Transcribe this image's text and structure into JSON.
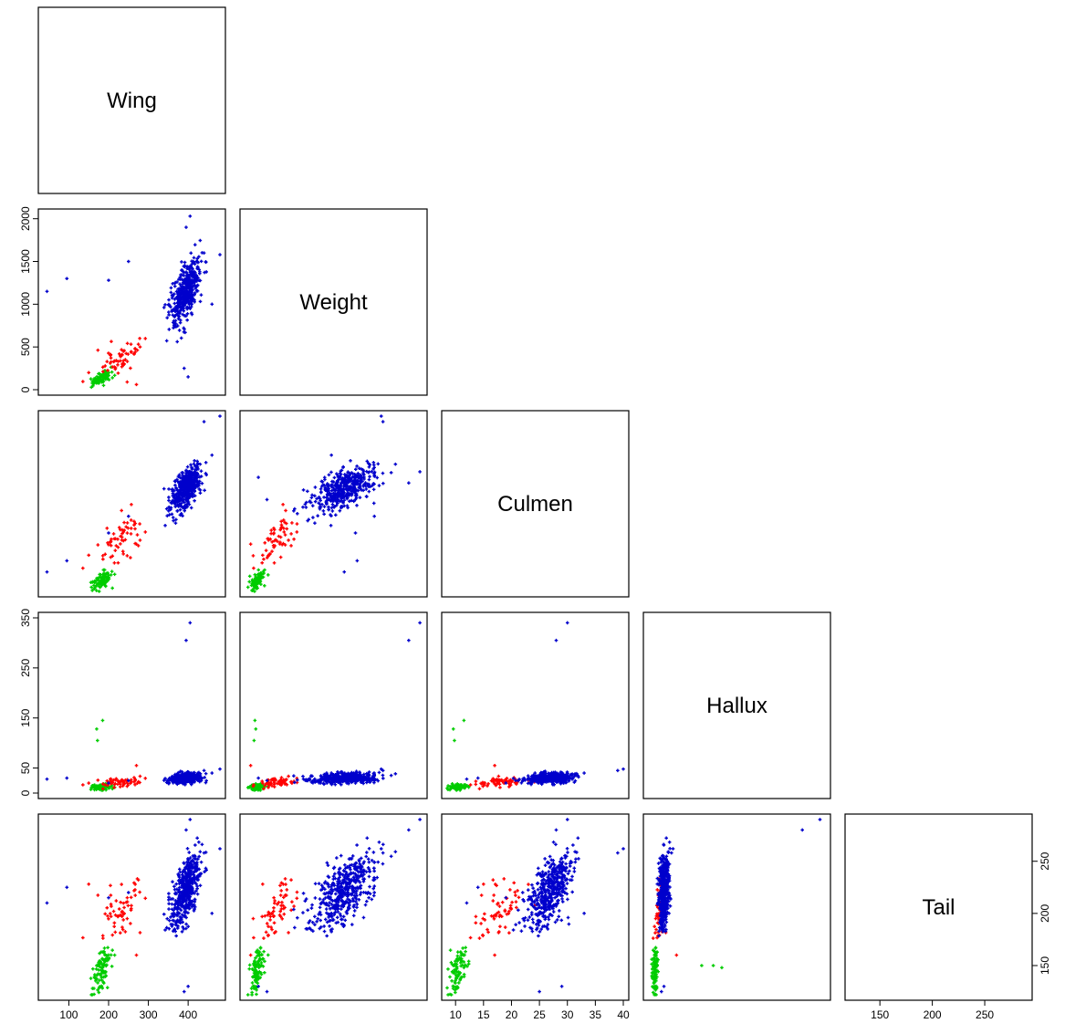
{
  "chart_data": {
    "type": "scatter",
    "layout": "lower-triangle scatterplot matrix",
    "variables": [
      "Wing",
      "Weight",
      "Culmen",
      "Hallux",
      "Tail"
    ],
    "ranges": {
      "Wing": [
        37,
        480
      ],
      "Weight": [
        0,
        2050
      ],
      "Culmen": [
        8.5,
        40
      ],
      "Hallux": [
        0,
        350
      ],
      "Tail": [
        122,
        290
      ]
    },
    "axes": {
      "bottom": {
        "Wing": [
          100,
          200,
          300,
          400
        ],
        "Culmen": [
          10,
          15,
          20,
          25,
          30,
          35,
          40
        ],
        "Tail": [
          150,
          200,
          250
        ]
      },
      "left": {
        "Weight": [
          0,
          500,
          1000,
          1500,
          2000
        ],
        "Hallux": [
          0,
          50,
          150,
          250,
          350
        ]
      },
      "right": {
        "Tail": [
          150,
          200,
          250
        ]
      }
    },
    "series": [
      {
        "color": "#00cc00",
        "center": {
          "Wing": 183,
          "Weight": 140,
          "Culmen": 10.5,
          "Hallux": 12,
          "Tail": 145
        },
        "sd": {
          "Wing": 12,
          "Weight": 40,
          "Culmen": 0.9,
          "Hallux": 3,
          "Tail": 12
        },
        "n": 90,
        "extra": [
          {
            "Wing": 170,
            "Weight": 120,
            "Culmen": 9.6,
            "Hallux": 128,
            "Tail": 150
          },
          {
            "Wing": 185,
            "Weight": 110,
            "Culmen": 11.5,
            "Hallux": 145,
            "Tail": 148
          },
          {
            "Wing": 172,
            "Weight": 100,
            "Culmen": 9.8,
            "Hallux": 105,
            "Tail": 150
          }
        ]
      },
      {
        "color": "#ff0000",
        "center": {
          "Wing": 230,
          "Weight": 370,
          "Culmen": 17.5,
          "Hallux": 22,
          "Tail": 200
        },
        "sd": {
          "Wing": 28,
          "Weight": 120,
          "Culmen": 2.2,
          "Hallux": 5,
          "Tail": 15
        },
        "n": 60,
        "extra": [
          {
            "Wing": 150,
            "Weight": 200,
            "Culmen": 15,
            "Hallux": 20,
            "Tail": 228
          },
          {
            "Wing": 270,
            "Weight": 60,
            "Culmen": 17,
            "Hallux": 55,
            "Tail": 160
          }
        ]
      },
      {
        "color": "#0000cc",
        "center": {
          "Wing": 395,
          "Weight": 1140,
          "Culmen": 27,
          "Hallux": 30,
          "Tail": 222
        },
        "sd": {
          "Wing": 18,
          "Weight": 180,
          "Culmen": 2,
          "Hallux": 5,
          "Tail": 17
        },
        "n": 450,
        "extra": [
          {
            "Wing": 405,
            "Weight": 2030,
            "Culmen": 30,
            "Hallux": 340,
            "Tail": 290
          },
          {
            "Wing": 395,
            "Weight": 1900,
            "Culmen": 28,
            "Hallux": 305,
            "Tail": 280
          },
          {
            "Wing": 440,
            "Weight": 1600,
            "Culmen": 39,
            "Hallux": 45,
            "Tail": 258
          },
          {
            "Wing": 45,
            "Weight": 1150,
            "Culmen": 12,
            "Hallux": 28,
            "Tail": 210
          },
          {
            "Wing": 95,
            "Weight": 1300,
            "Culmen": 14,
            "Hallux": 30,
            "Tail": 225
          },
          {
            "Wing": 460,
            "Weight": 1000,
            "Culmen": 33,
            "Hallux": 40,
            "Tail": 200
          },
          {
            "Wing": 400,
            "Weight": 150,
            "Culmen": 29,
            "Hallux": 30,
            "Tail": 130
          },
          {
            "Wing": 390,
            "Weight": 250,
            "Culmen": 25,
            "Hallux": 25,
            "Tail": 125
          },
          {
            "Wing": 200,
            "Weight": 1280,
            "Culmen": 19,
            "Hallux": 20,
            "Tail": 215
          },
          {
            "Wing": 250,
            "Weight": 1500,
            "Culmen": 22,
            "Hallux": 25,
            "Tail": 220
          },
          {
            "Wing": 480,
            "Weight": 1580,
            "Culmen": 40,
            "Hallux": 48,
            "Tail": 262
          }
        ]
      }
    ]
  }
}
